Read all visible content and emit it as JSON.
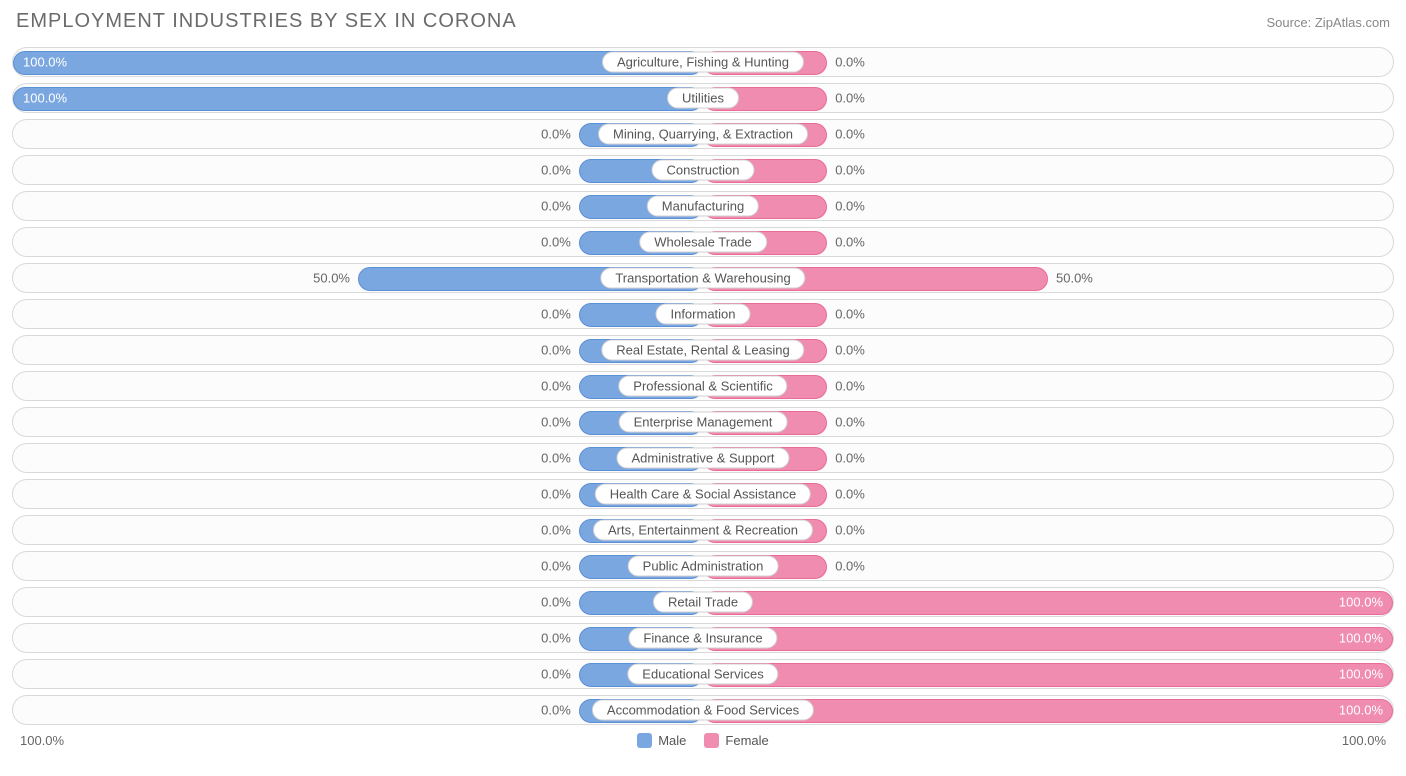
{
  "header": {
    "title": "EMPLOYMENT INDUSTRIES BY SEX IN CORONA",
    "source": "Source: ZipAtlas.com"
  },
  "chart": {
    "type": "diverging-bar",
    "male_color": "#7ba7e0",
    "male_border": "#5b8fd6",
    "female_color": "#f08cb0",
    "female_border": "#e96b98",
    "track_bg": "#fcfcfc",
    "track_border": "#d9d9d9",
    "label_bg": "#ffffff",
    "label_border": "#d0d0d0",
    "text_color": "#666666",
    "min_bar_pct": 18,
    "rows": [
      {
        "label": "Agriculture, Fishing & Hunting",
        "male": 100.0,
        "female": 0.0
      },
      {
        "label": "Utilities",
        "male": 100.0,
        "female": 0.0
      },
      {
        "label": "Mining, Quarrying, & Extraction",
        "male": 0.0,
        "female": 0.0
      },
      {
        "label": "Construction",
        "male": 0.0,
        "female": 0.0
      },
      {
        "label": "Manufacturing",
        "male": 0.0,
        "female": 0.0
      },
      {
        "label": "Wholesale Trade",
        "male": 0.0,
        "female": 0.0
      },
      {
        "label": "Transportation & Warehousing",
        "male": 50.0,
        "female": 50.0
      },
      {
        "label": "Information",
        "male": 0.0,
        "female": 0.0
      },
      {
        "label": "Real Estate, Rental & Leasing",
        "male": 0.0,
        "female": 0.0
      },
      {
        "label": "Professional & Scientific",
        "male": 0.0,
        "female": 0.0
      },
      {
        "label": "Enterprise Management",
        "male": 0.0,
        "female": 0.0
      },
      {
        "label": "Administrative & Support",
        "male": 0.0,
        "female": 0.0
      },
      {
        "label": "Health Care & Social Assistance",
        "male": 0.0,
        "female": 0.0
      },
      {
        "label": "Arts, Entertainment & Recreation",
        "male": 0.0,
        "female": 0.0
      },
      {
        "label": "Public Administration",
        "male": 0.0,
        "female": 0.0
      },
      {
        "label": "Retail Trade",
        "male": 0.0,
        "female": 100.0
      },
      {
        "label": "Finance & Insurance",
        "male": 0.0,
        "female": 100.0
      },
      {
        "label": "Educational Services",
        "male": 0.0,
        "female": 100.0
      },
      {
        "label": "Accommodation & Food Services",
        "male": 0.0,
        "female": 100.0
      }
    ]
  },
  "footer": {
    "axis_left": "100.0%",
    "axis_right": "100.0%",
    "legend": [
      {
        "label": "Male",
        "color": "#7ba7e0"
      },
      {
        "label": "Female",
        "color": "#f08cb0"
      }
    ]
  }
}
